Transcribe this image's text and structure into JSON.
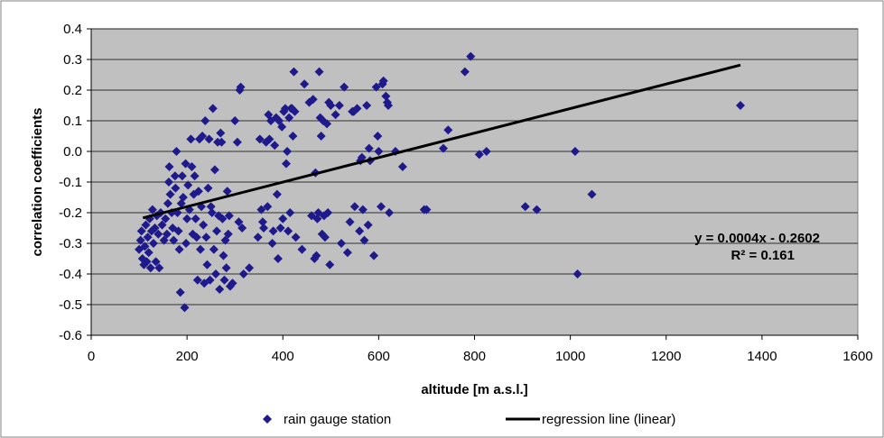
{
  "chart_data": {
    "type": "scatter",
    "xlabel": "altitude  [m a.s.l.]",
    "ylabel": "correlation coefficients",
    "xlim": [
      0,
      1600
    ],
    "ylim": [
      -0.6,
      0.4
    ],
    "x_ticks": [
      0,
      200,
      400,
      600,
      800,
      1000,
      1200,
      1400,
      1600
    ],
    "y_ticks": [
      0.4,
      0.3,
      0.2,
      0.1,
      0.0,
      -0.1,
      -0.2,
      -0.3,
      -0.4,
      -0.5,
      -0.6
    ],
    "x_tick_labels": [
      "0",
      "200",
      "400",
      "600",
      "800",
      "1000",
      "1200",
      "1400",
      "1600"
    ],
    "y_tick_labels": [
      "0.4",
      "0.3",
      "0.2",
      "0.1",
      "0.0",
      "-0.1",
      "-0.2",
      "-0.3",
      "-0.4",
      "-0.5",
      "-0.6"
    ],
    "grid": "horizontal",
    "plot_background": "#c0c0c0",
    "series": [
      {
        "name": "rain gauge station",
        "marker": "diamond",
        "color": "#1f1a8c",
        "points": [
          [
            100,
            -0.32
          ],
          [
            103,
            -0.29
          ],
          [
            105,
            -0.26
          ],
          [
            107,
            -0.35
          ],
          [
            110,
            -0.37
          ],
          [
            112,
            -0.31
          ],
          [
            114,
            -0.24
          ],
          [
            116,
            -0.36
          ],
          [
            118,
            -0.28
          ],
          [
            120,
            -0.33
          ],
          [
            122,
            -0.22
          ],
          [
            124,
            -0.38
          ],
          [
            126,
            -0.26
          ],
          [
            128,
            -0.19
          ],
          [
            130,
            -0.3
          ],
          [
            133,
            -0.25
          ],
          [
            135,
            -0.36
          ],
          [
            137,
            -0.21
          ],
          [
            140,
            -0.27
          ],
          [
            142,
            -0.38
          ],
          [
            145,
            -0.2
          ],
          [
            148,
            -0.24
          ],
          [
            152,
            -0.29
          ],
          [
            155,
            -0.22
          ],
          [
            158,
            -0.27
          ],
          [
            160,
            -0.17
          ],
          [
            162,
            -0.1
          ],
          [
            163,
            -0.05
          ],
          [
            165,
            -0.14
          ],
          [
            168,
            -0.2
          ],
          [
            170,
            -0.25
          ],
          [
            172,
            -0.29
          ],
          [
            175,
            -0.08
          ],
          [
            176,
            -0.12
          ],
          [
            178,
            0.0
          ],
          [
            180,
            -0.2
          ],
          [
            182,
            -0.26
          ],
          [
            184,
            -0.32
          ],
          [
            186,
            -0.46
          ],
          [
            188,
            -0.17
          ],
          [
            190,
            -0.08
          ],
          [
            192,
            -0.15
          ],
          [
            195,
            -0.51
          ],
          [
            197,
            -0.04
          ],
          [
            198,
            -0.3
          ],
          [
            200,
            -0.22
          ],
          [
            202,
            -0.11
          ],
          [
            205,
            -0.19
          ],
          [
            208,
            0.04
          ],
          [
            210,
            -0.05
          ],
          [
            212,
            -0.27
          ],
          [
            214,
            -0.14
          ],
          [
            216,
            -0.08
          ],
          [
            218,
            -0.22
          ],
          [
            220,
            -0.28
          ],
          [
            222,
            -0.42
          ],
          [
            224,
            -0.13
          ],
          [
            226,
            0.04
          ],
          [
            228,
            -0.32
          ],
          [
            230,
            -0.18
          ],
          [
            232,
            0.05
          ],
          [
            234,
            -0.24
          ],
          [
            236,
            -0.43
          ],
          [
            238,
            0.1
          ],
          [
            240,
            -0.28
          ],
          [
            242,
            -0.37
          ],
          [
            244,
            -0.12
          ],
          [
            246,
            0.04
          ],
          [
            248,
            -0.42
          ],
          [
            250,
            -0.18
          ],
          [
            252,
            -0.2
          ],
          [
            254,
            0.14
          ],
          [
            256,
            -0.32
          ],
          [
            258,
            -0.06
          ],
          [
            260,
            -0.4
          ],
          [
            262,
            -0.26
          ],
          [
            264,
            0.03
          ],
          [
            266,
            -0.21
          ],
          [
            268,
            -0.45
          ],
          [
            270,
            0.06
          ],
          [
            272,
            0.03
          ],
          [
            274,
            -0.22
          ],
          [
            276,
            -0.34
          ],
          [
            278,
            -0.42
          ],
          [
            280,
            -0.29
          ],
          [
            282,
            -0.38
          ],
          [
            284,
            -0.13
          ],
          [
            286,
            -0.27
          ],
          [
            288,
            -0.21
          ],
          [
            290,
            -0.44
          ],
          [
            295,
            -0.43
          ],
          [
            300,
            0.1
          ],
          [
            305,
            0.03
          ],
          [
            308,
            -0.23
          ],
          [
            310,
            0.2
          ],
          [
            312,
            0.21
          ],
          [
            315,
            -0.25
          ],
          [
            318,
            -0.4
          ],
          [
            330,
            -0.38
          ],
          [
            348,
            -0.28
          ],
          [
            352,
            0.04
          ],
          [
            355,
            -0.19
          ],
          [
            358,
            -0.23
          ],
          [
            360,
            -0.25
          ],
          [
            365,
            0.03
          ],
          [
            368,
            -0.18
          ],
          [
            370,
            0.12
          ],
          [
            372,
            0.04
          ],
          [
            375,
            0.1
          ],
          [
            378,
            -0.3
          ],
          [
            380,
            -0.26
          ],
          [
            383,
            0.02
          ],
          [
            386,
            0.11
          ],
          [
            388,
            -0.14
          ],
          [
            390,
            -0.35
          ],
          [
            392,
            0.1
          ],
          [
            395,
            -0.25
          ],
          [
            398,
            0.08
          ],
          [
            400,
            -0.22
          ],
          [
            402,
            0.13
          ],
          [
            405,
            0.14
          ],
          [
            407,
            -0.04
          ],
          [
            409,
            0.0
          ],
          [
            411,
            -0.26
          ],
          [
            413,
            0.11
          ],
          [
            415,
            -0.2
          ],
          [
            417,
            0.14
          ],
          [
            419,
            0.14
          ],
          [
            421,
            0.05
          ],
          [
            423,
            0.26
          ],
          [
            425,
            0.13
          ],
          [
            427,
            -0.28
          ],
          [
            440,
            -0.32
          ],
          [
            445,
            0.22
          ],
          [
            455,
            0.16
          ],
          [
            460,
            -0.21
          ],
          [
            463,
            0.17
          ],
          [
            466,
            -0.35
          ],
          [
            468,
            -0.07
          ],
          [
            470,
            -0.34
          ],
          [
            472,
            -0.22
          ],
          [
            474,
            -0.2
          ],
          [
            476,
            0.26
          ],
          [
            478,
            0.11
          ],
          [
            480,
            0.05
          ],
          [
            482,
            -0.27
          ],
          [
            484,
            0.1
          ],
          [
            486,
            -0.21
          ],
          [
            488,
            -0.28
          ],
          [
            492,
            0.09
          ],
          [
            494,
            -0.2
          ],
          [
            496,
            0.16
          ],
          [
            498,
            -0.37
          ],
          [
            500,
            0.15
          ],
          [
            510,
            0.12
          ],
          [
            518,
            0.15
          ],
          [
            522,
            -0.3
          ],
          [
            528,
            0.21
          ],
          [
            535,
            -0.33
          ],
          [
            540,
            -0.23
          ],
          [
            545,
            0.13
          ],
          [
            548,
            0.13
          ],
          [
            550,
            -0.18
          ],
          [
            555,
            0.14
          ],
          [
            560,
            -0.26
          ],
          [
            562,
            -0.03
          ],
          [
            565,
            -0.02
          ],
          [
            567,
            -0.19
          ],
          [
            570,
            -0.29
          ],
          [
            575,
            0.15
          ],
          [
            578,
            -0.24
          ],
          [
            580,
            0.01
          ],
          [
            582,
            -0.03
          ],
          [
            590,
            -0.34
          ],
          [
            595,
            0.21
          ],
          [
            598,
            0.05
          ],
          [
            600,
            0.0
          ],
          [
            605,
            -0.18
          ],
          [
            608,
            0.22
          ],
          [
            610,
            0.23
          ],
          [
            615,
            0.18
          ],
          [
            618,
            0.16
          ],
          [
            620,
            0.15
          ],
          [
            622,
            -0.2
          ],
          [
            635,
            0.0
          ],
          [
            650,
            -0.05
          ],
          [
            695,
            -0.19
          ],
          [
            700,
            -0.19
          ],
          [
            735,
            0.01
          ],
          [
            745,
            0.07
          ],
          [
            780,
            0.26
          ],
          [
            792,
            0.31
          ],
          [
            810,
            -0.01
          ],
          [
            825,
            0.0
          ],
          [
            906,
            -0.18
          ],
          [
            930,
            -0.19
          ],
          [
            1010,
            0.0
          ],
          [
            1015,
            -0.4
          ],
          [
            1045,
            -0.14
          ],
          [
            1355,
            0.15
          ]
        ]
      }
    ],
    "regression": {
      "name": "regression line (linear)",
      "slope": 0.0004,
      "intercept": -0.2602,
      "x_range": [
        108,
        1355
      ],
      "color": "#000000",
      "equation_label": "y = 0.0004x - 0.2602",
      "r2_label": "R² = 0.161"
    },
    "legend_position": "bottom"
  }
}
